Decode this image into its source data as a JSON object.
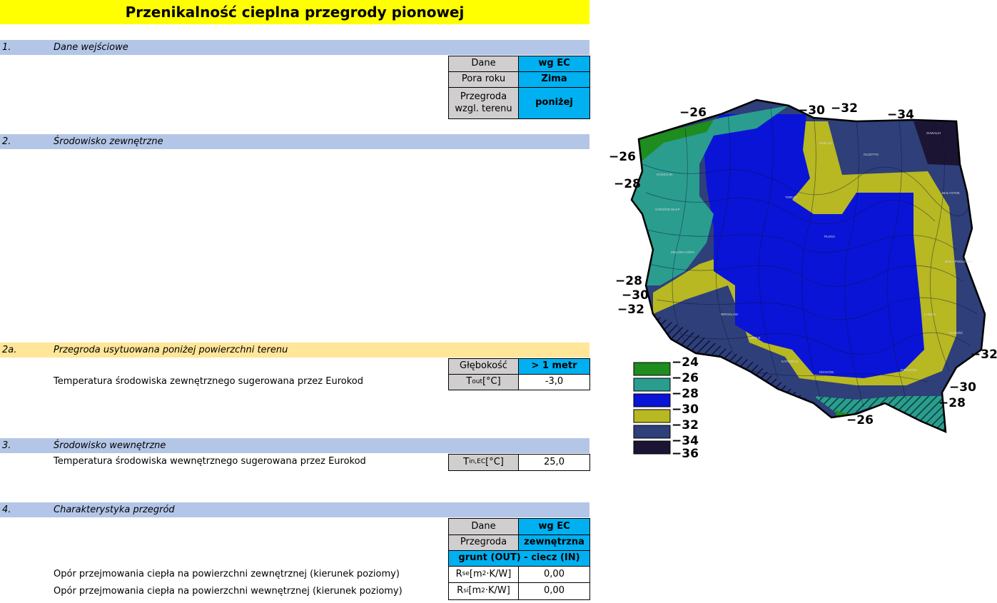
{
  "title": "Przenikalność cieplna przegrody pionowej",
  "sections": {
    "s1": {
      "num": "1.",
      "label": "Dane wejściowe"
    },
    "s2": {
      "num": "2.",
      "label": "Środowisko zewnętrzne"
    },
    "s2a": {
      "num": "2a.",
      "label": "Przegroda usytuowana poniżej powierzchni terenu"
    },
    "s3": {
      "num": "3.",
      "label": "Środowisko wewnętrzne"
    },
    "s4": {
      "num": "4.",
      "label": "Charakterystyka przegród"
    }
  },
  "input_table": {
    "dane_label": "Dane",
    "dane_value": "wg EC",
    "pora_label": "Pora roku",
    "pora_value": "Zima",
    "przegroda_label_1": "Przegroda",
    "przegroda_label_2": "wzgl. terenu",
    "przegroda_value": "poniżej"
  },
  "below_ground": {
    "depth_label": "Głębokość",
    "depth_value": "> 1 metr",
    "tout_desc": "Temperatura środowiska zewnętrznego sugerowana przez Eurokod",
    "tout_label": "T",
    "tout_sub": "out",
    "tout_unit": " [°C]",
    "tout_value": "-3,0"
  },
  "indoor": {
    "tin_desc": "Temperatura środowiska wewnętrznego sugerowana przez Eurokod",
    "tin_label": "T",
    "tin_sub": "in,EC",
    "tin_unit": " [°C]",
    "tin_value": "25,0"
  },
  "characteristics": {
    "dane_label": "Dane",
    "dane_value": "wg EC",
    "przegroda_label": "Przegroda",
    "przegroda_value": "zewnętrzna",
    "medium": "grunt (OUT) - ciecz (IN)",
    "rse_desc": "Opór przejmowania ciepła na powierzchni zewnętrznej (kierunek poziomy)",
    "rse_label": "R",
    "rse_sub": "se",
    "rse_unit": " [m",
    "rse_sup": "2",
    "rse_unit2": "·K/W]",
    "rse_value": "0,00",
    "rsi_desc": "Opór przejmowania ciepła na powierzchni wewnętrznej (kierunek poziomy)",
    "rsi_label": "R",
    "rsi_sub": "si",
    "rsi_unit": " [m",
    "rsi_sup": "2",
    "rsi_unit2": "·K/W]",
    "rsi_value": "0,00"
  },
  "map": {
    "zone_labels": [
      "−26",
      "−30",
      "−32",
      "−34",
      "−26",
      "−28",
      "−28",
      "−30",
      "−32",
      "−32",
      "−30",
      "−28",
      "−26"
    ],
    "legend": [
      {
        "color": "#1e8c1e",
        "label": "−24"
      },
      {
        "color": "#2a9d8f",
        "label": "−26"
      },
      {
        "color": "#0a14d6",
        "label": "−28"
      },
      {
        "color": "#b7b822",
        "label": "−30"
      },
      {
        "color": "#2e3f7a",
        "label": "−32"
      },
      {
        "color": "#1c1433",
        "label": "−34"
      }
    ],
    "legend_last": "−36",
    "city_labels": [
      "ELBLĄG",
      "OLSZTYN",
      "SUWAŁKI",
      "KOSZALIN",
      "BIAŁYSTOK",
      "GORZÓW WLKP",
      "TORUŃ",
      "PŁOCK",
      "ZIELONA GÓRA",
      "BIAŁA PODLASKA",
      "WROCŁAW",
      "OPOLE",
      "ZAMOŚĆ",
      "KRAKÓW",
      "RZESZÓW",
      "KATOWICE",
      "LUBLIN"
    ]
  }
}
